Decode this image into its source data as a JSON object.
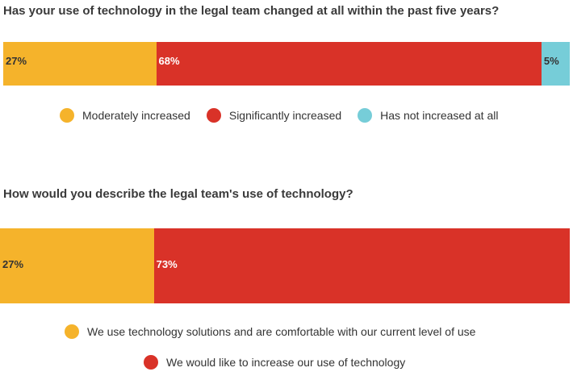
{
  "chart_data": [
    {
      "type": "bar",
      "stacked": true,
      "orientation": "horizontal",
      "title": "Has your use of technology in the legal team changed at all within the past five years?",
      "series": [
        {
          "name": "Moderately increased",
          "value": 27,
          "label": "27%",
          "color": "#F5B32B",
          "label_color": "#333333"
        },
        {
          "name": "Significantly increased",
          "value": 68,
          "label": "68%",
          "color": "#D93228",
          "label_color": "#ffffff"
        },
        {
          "name": "Has not increased at all",
          "value": 5,
          "label": "5%",
          "color": "#76CDD8",
          "label_color": "#333333"
        }
      ],
      "legend": "bottom"
    },
    {
      "type": "bar",
      "stacked": true,
      "orientation": "horizontal",
      "title": "How would you describe the legal team's use of technology?",
      "series": [
        {
          "name": "We use technology solutions and are comfortable with our current level of use",
          "value": 27,
          "label": "27%",
          "color": "#F5B32B",
          "label_color": "#333333"
        },
        {
          "name": "We would like to increase our use of technology",
          "value": 73,
          "label": "73%",
          "color": "#D93228",
          "label_color": "#ffffff"
        }
      ],
      "legend": "bottom"
    }
  ]
}
